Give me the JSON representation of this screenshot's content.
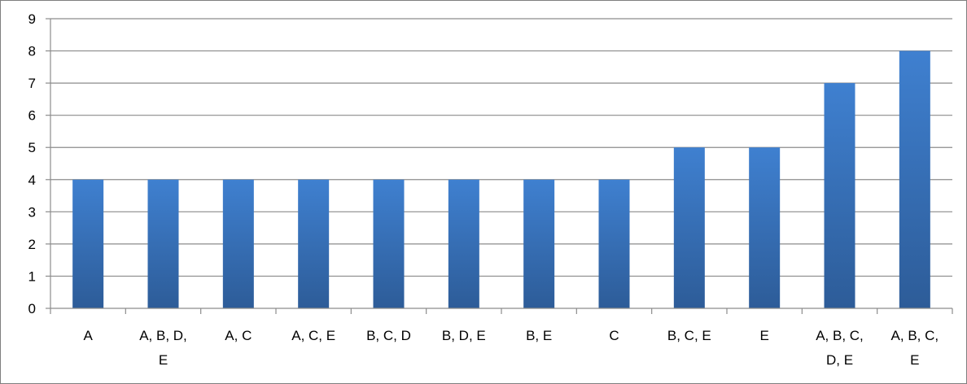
{
  "chart_data": {
    "type": "bar",
    "title": "",
    "xlabel": "",
    "ylabel": "",
    "ylim": [
      0,
      9
    ],
    "yticks": [
      0,
      1,
      2,
      3,
      4,
      5,
      6,
      7,
      8,
      9
    ],
    "grid": true,
    "legend": "none",
    "categories": [
      [
        "A"
      ],
      [
        "A, B, D,",
        "E"
      ],
      [
        "A, C"
      ],
      [
        "A, C, E"
      ],
      [
        "B, C, D"
      ],
      [
        "B, D, E"
      ],
      [
        "B, E"
      ],
      [
        "C"
      ],
      [
        "B, C, E"
      ],
      [
        "E"
      ],
      [
        "A, B, C,",
        "D, E"
      ],
      [
        "A, B, C,",
        "E"
      ]
    ],
    "values": [
      4,
      4,
      4,
      4,
      4,
      4,
      4,
      4,
      5,
      5,
      7,
      8
    ],
    "colors": {
      "bar_top": "#3f80d0",
      "bar_bottom": "#2d5c98",
      "grid": "#8c8c8c",
      "axis": "#8c8c8c"
    }
  }
}
